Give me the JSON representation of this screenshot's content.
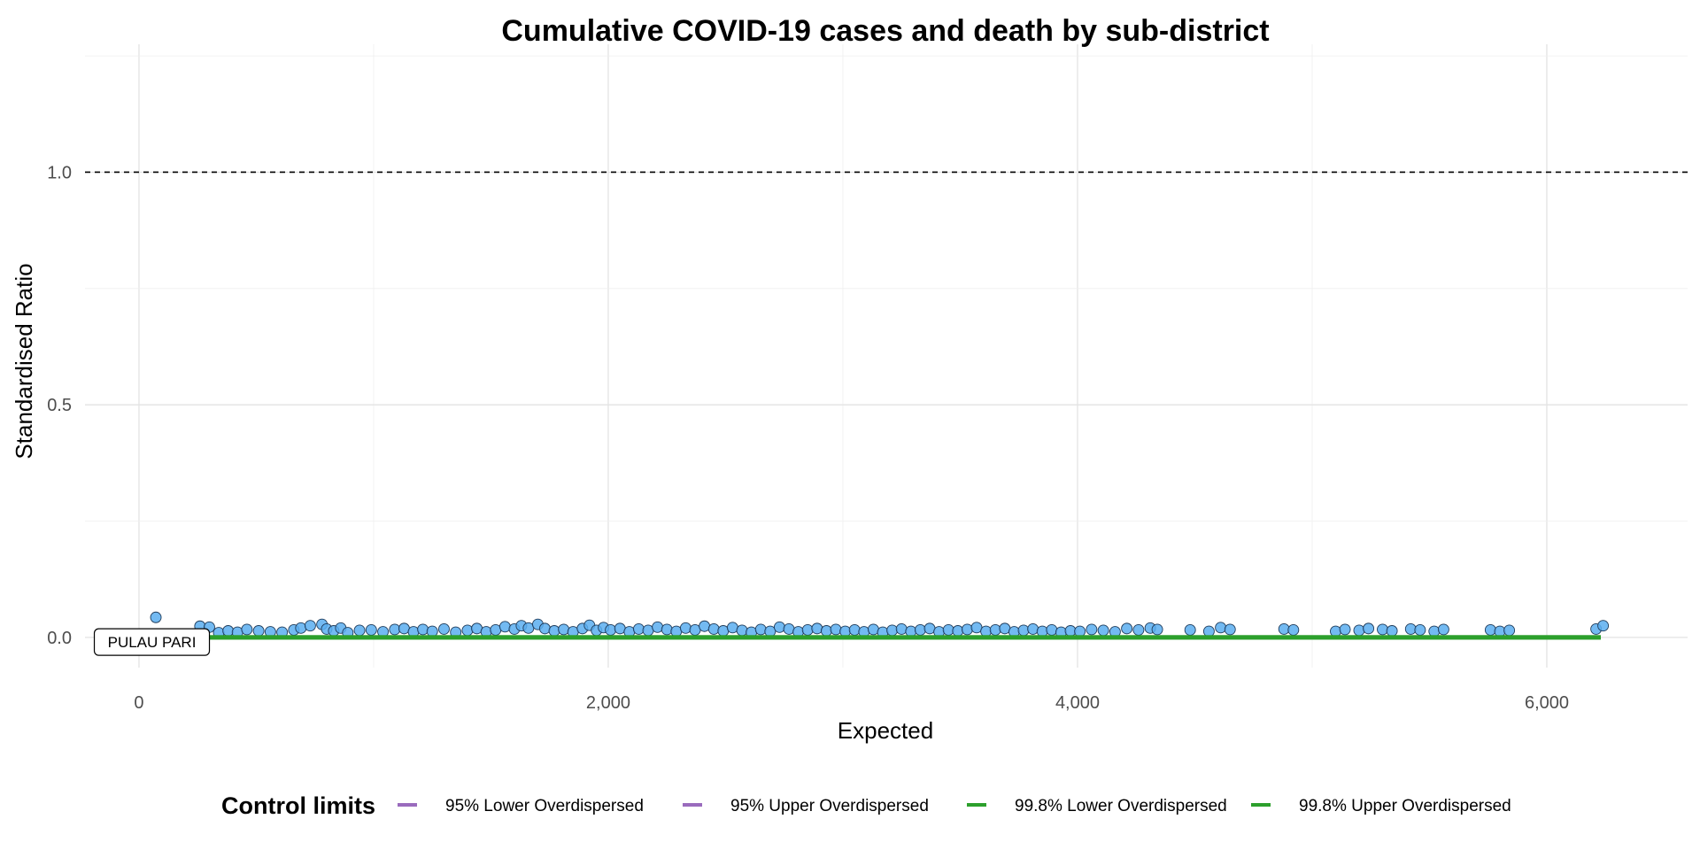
{
  "chart_data": {
    "type": "scatter",
    "title": "Cumulative COVID-19 cases and death by sub-district",
    "xlabel": "Expected",
    "ylabel": "Standardised Ratio",
    "xlim": [
      -230,
      6600
    ],
    "ylim": [
      -0.065,
      1.275
    ],
    "x_ticks": [
      0,
      2000,
      4000,
      6000
    ],
    "x_tick_labels": [
      "0",
      "2,000",
      "4,000",
      "6,000"
    ],
    "y_ticks": [
      0.0,
      0.5,
      1.0
    ],
    "y_tick_labels": [
      "0.0",
      "0.5",
      "1.0"
    ],
    "grid": true,
    "reference_line": {
      "y": 1.0,
      "style": "dashed"
    },
    "legend": {
      "title": "Control limits",
      "position": "bottom",
      "entries": [
        {
          "label": "95% Lower Overdispersed",
          "color": "#9a6bbd"
        },
        {
          "label": "95% Upper Overdispersed",
          "color": "#9a6bbd"
        },
        {
          "label": "99.8% Lower Overdispersed",
          "color": "#2ca02c"
        },
        {
          "label": "99.8% Upper Overdispersed",
          "color": "#2ca02c"
        }
      ]
    },
    "control_limit_lines": [
      {
        "name": "99.8% Lower Overdispersed",
        "x": [
          300,
          6230
        ],
        "y": [
          0.0,
          0.0
        ],
        "color": "#2ca02c"
      },
      {
        "name": "99.8% Upper Overdispersed",
        "x": [
          300,
          6230
        ],
        "y": [
          0.0,
          0.0
        ],
        "color": "#2ca02c"
      }
    ],
    "annotations": [
      {
        "label": "PULAU PARI",
        "x": 55,
        "y": -0.01
      }
    ],
    "point_color": "#5aaef0",
    "point_edge": "#1f3b5a",
    "points": [
      [
        72,
        0.043
      ],
      [
        260,
        0.024
      ],
      [
        300,
        0.022
      ],
      [
        340,
        0.01
      ],
      [
        380,
        0.014
      ],
      [
        420,
        0.011
      ],
      [
        460,
        0.017
      ],
      [
        510,
        0.014
      ],
      [
        560,
        0.012
      ],
      [
        610,
        0.011
      ],
      [
        660,
        0.016
      ],
      [
        690,
        0.02
      ],
      [
        730,
        0.025
      ],
      [
        780,
        0.028
      ],
      [
        800,
        0.018
      ],
      [
        830,
        0.014
      ],
      [
        860,
        0.02
      ],
      [
        890,
        0.01
      ],
      [
        940,
        0.015
      ],
      [
        990,
        0.016
      ],
      [
        1040,
        0.012
      ],
      [
        1090,
        0.017
      ],
      [
        1130,
        0.019
      ],
      [
        1170,
        0.012
      ],
      [
        1210,
        0.017
      ],
      [
        1250,
        0.013
      ],
      [
        1300,
        0.018
      ],
      [
        1350,
        0.011
      ],
      [
        1400,
        0.015
      ],
      [
        1440,
        0.019
      ],
      [
        1480,
        0.012
      ],
      [
        1520,
        0.016
      ],
      [
        1560,
        0.023
      ],
      [
        1600,
        0.018
      ],
      [
        1630,
        0.025
      ],
      [
        1660,
        0.02
      ],
      [
        1700,
        0.028
      ],
      [
        1730,
        0.019
      ],
      [
        1770,
        0.014
      ],
      [
        1810,
        0.017
      ],
      [
        1850,
        0.012
      ],
      [
        1890,
        0.019
      ],
      [
        1920,
        0.026
      ],
      [
        1950,
        0.015
      ],
      [
        1980,
        0.021
      ],
      [
        2010,
        0.016
      ],
      [
        2050,
        0.019
      ],
      [
        2090,
        0.012
      ],
      [
        2130,
        0.018
      ],
      [
        2170,
        0.015
      ],
      [
        2210,
        0.022
      ],
      [
        2250,
        0.017
      ],
      [
        2290,
        0.013
      ],
      [
        2330,
        0.02
      ],
      [
        2370,
        0.016
      ],
      [
        2410,
        0.024
      ],
      [
        2450,
        0.018
      ],
      [
        2490,
        0.014
      ],
      [
        2530,
        0.021
      ],
      [
        2570,
        0.015
      ],
      [
        2610,
        0.011
      ],
      [
        2650,
        0.017
      ],
      [
        2690,
        0.013
      ],
      [
        2730,
        0.022
      ],
      [
        2770,
        0.018
      ],
      [
        2810,
        0.012
      ],
      [
        2850,
        0.016
      ],
      [
        2890,
        0.019
      ],
      [
        2930,
        0.014
      ],
      [
        2970,
        0.017
      ],
      [
        3010,
        0.013
      ],
      [
        3050,
        0.016
      ],
      [
        3090,
        0.012
      ],
      [
        3130,
        0.017
      ],
      [
        3170,
        0.011
      ],
      [
        3210,
        0.015
      ],
      [
        3250,
        0.018
      ],
      [
        3290,
        0.013
      ],
      [
        3330,
        0.016
      ],
      [
        3370,
        0.019
      ],
      [
        3410,
        0.012
      ],
      [
        3450,
        0.016
      ],
      [
        3490,
        0.014
      ],
      [
        3530,
        0.017
      ],
      [
        3570,
        0.021
      ],
      [
        3610,
        0.013
      ],
      [
        3650,
        0.016
      ],
      [
        3690,
        0.019
      ],
      [
        3730,
        0.012
      ],
      [
        3770,
        0.015
      ],
      [
        3810,
        0.018
      ],
      [
        3850,
        0.013
      ],
      [
        3890,
        0.016
      ],
      [
        3930,
        0.011
      ],
      [
        3970,
        0.014
      ],
      [
        4010,
        0.013
      ],
      [
        4060,
        0.017
      ],
      [
        4110,
        0.015
      ],
      [
        4160,
        0.012
      ],
      [
        4210,
        0.019
      ],
      [
        4260,
        0.016
      ],
      [
        4310,
        0.02
      ],
      [
        4340,
        0.017
      ],
      [
        4480,
        0.016
      ],
      [
        4560,
        0.013
      ],
      [
        4610,
        0.021
      ],
      [
        4650,
        0.017
      ],
      [
        4880,
        0.018
      ],
      [
        4920,
        0.016
      ],
      [
        5100,
        0.013
      ],
      [
        5140,
        0.017
      ],
      [
        5200,
        0.015
      ],
      [
        5240,
        0.019
      ],
      [
        5300,
        0.017
      ],
      [
        5340,
        0.014
      ],
      [
        5420,
        0.018
      ],
      [
        5460,
        0.016
      ],
      [
        5520,
        0.013
      ],
      [
        5560,
        0.017
      ],
      [
        5760,
        0.016
      ],
      [
        5800,
        0.013
      ],
      [
        5840,
        0.015
      ],
      [
        6210,
        0.018
      ],
      [
        6240,
        0.025
      ]
    ]
  }
}
